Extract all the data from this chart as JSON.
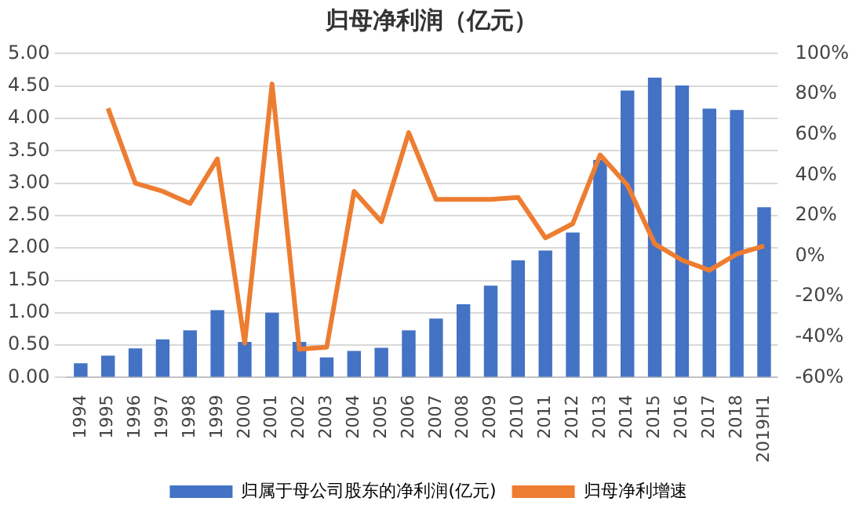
{
  "chart_data": {
    "type": "bar",
    "title": "归母净利润（亿元）",
    "categories": [
      "1994",
      "1995",
      "1996",
      "1997",
      "1998",
      "1999",
      "2000",
      "2001",
      "2002",
      "2003",
      "2004",
      "2005",
      "2006",
      "2007",
      "2008",
      "2009",
      "2010",
      "2011",
      "2012",
      "2013",
      "2014",
      "2015",
      "2016",
      "2017",
      "2018",
      "2019H1"
    ],
    "series": [
      {
        "name": "归属于母公司股东的净利润(亿元)",
        "color": "#4472c4",
        "values": [
          0.22,
          0.34,
          0.45,
          0.59,
          0.73,
          1.04,
          0.55,
          1.0,
          0.55,
          0.31,
          0.41,
          0.46,
          0.73,
          0.91,
          1.13,
          1.42,
          1.81,
          1.96,
          2.24,
          3.36,
          4.43,
          4.63,
          4.51,
          4.15,
          4.13,
          2.63
        ]
      },
      {
        "name": "归母净利增速",
        "type": "line",
        "axis": "y2",
        "color": "#ed7d31",
        "values": [
          null,
          73,
          36,
          32,
          26,
          48,
          -43,
          85,
          -46,
          -45,
          32,
          17,
          61,
          28,
          28,
          28,
          29,
          9,
          16,
          50,
          35,
          6,
          -2,
          -7,
          1,
          5
        ]
      }
    ],
    "ylim": [
      0,
      5
    ],
    "yticks": [
      {
        "value": 0,
        "label": "0.00"
      },
      {
        "value": 0.5,
        "label": "0.50"
      },
      {
        "value": 1,
        "label": "1.00"
      },
      {
        "value": 1.5,
        "label": "1.50"
      },
      {
        "value": 2,
        "label": "2.00"
      },
      {
        "value": 2.5,
        "label": "2.50"
      },
      {
        "value": 3,
        "label": "3.00"
      },
      {
        "value": 3.5,
        "label": "3.50"
      },
      {
        "value": 4,
        "label": "4.00"
      },
      {
        "value": 4.5,
        "label": "4.50"
      },
      {
        "value": 5,
        "label": "5.00"
      }
    ],
    "y2lim": [
      -60,
      100
    ],
    "y2ticks": [
      {
        "value": -60,
        "label": "-60%"
      },
      {
        "value": -40,
        "label": "-40%"
      },
      {
        "value": -20,
        "label": "-20%"
      },
      {
        "value": 0,
        "label": "0%"
      },
      {
        "value": 20,
        "label": "20%"
      },
      {
        "value": 40,
        "label": "40%"
      },
      {
        "value": 60,
        "label": "60%"
      },
      {
        "value": 80,
        "label": "80%"
      },
      {
        "value": 100,
        "label": "100%"
      }
    ],
    "grid": "y",
    "legend": "bottom",
    "marker": "none",
    "line_style": "solid"
  }
}
